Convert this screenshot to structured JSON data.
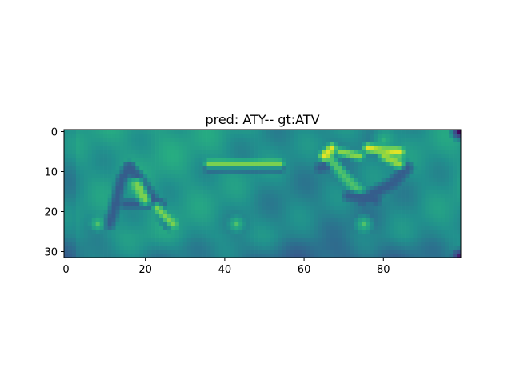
{
  "chart_data": {
    "type": "heatmap",
    "title": "pred: ATY-- gt:ATV",
    "image_shape": [
      32,
      100
    ],
    "colormap": "viridis",
    "xlim": [
      -0.5,
      99.5
    ],
    "ylim": [
      31.5,
      -0.5
    ],
    "x_ticks": [
      0,
      20,
      40,
      60,
      80
    ],
    "y_ticks": [
      0,
      10,
      20,
      30
    ],
    "x_tick_labels": [
      "0",
      "20",
      "40",
      "60",
      "80"
    ],
    "y_tick_labels": [
      "0",
      "10",
      "20",
      "30"
    ],
    "background_level": 0.52,
    "strokes": [
      {
        "id": "A-left-diag",
        "level": 0.3,
        "width": 1.2,
        "points": [
          [
            16,
            9
          ],
          [
            14,
            12
          ],
          [
            13,
            16
          ],
          [
            12,
            20
          ],
          [
            11,
            23
          ]
        ]
      },
      {
        "id": "A-right-diag",
        "level": 0.3,
        "width": 1.3,
        "points": [
          [
            16,
            9
          ],
          [
            18,
            11
          ],
          [
            20,
            14
          ],
          [
            22,
            17
          ],
          [
            24,
            20
          ],
          [
            26,
            23
          ]
        ]
      },
      {
        "id": "A-crossbar",
        "level": 0.3,
        "width": 1.0,
        "points": [
          [
            15,
            18
          ],
          [
            24,
            18
          ]
        ]
      },
      {
        "id": "A-inner-highlight",
        "level": 0.8,
        "width": 1.2,
        "points": [
          [
            18,
            13
          ],
          [
            20,
            17
          ]
        ]
      },
      {
        "id": "A-right-highlight",
        "level": 0.8,
        "width": 1.0,
        "points": [
          [
            23,
            19
          ],
          [
            27,
            23
          ]
        ]
      },
      {
        "id": "dash",
        "level": 0.3,
        "width": 1.0,
        "points": [
          [
            36,
            9
          ],
          [
            54,
            9
          ]
        ]
      },
      {
        "id": "dash-highlight",
        "level": 0.8,
        "width": 0.8,
        "points": [
          [
            36,
            8
          ],
          [
            54,
            8
          ]
        ]
      },
      {
        "id": "V-left-top",
        "level": 0.3,
        "width": 1.1,
        "points": [
          [
            64,
            9
          ],
          [
            67,
            8
          ]
        ]
      },
      {
        "id": "V-left-diag",
        "level": 0.72,
        "width": 1.1,
        "points": [
          [
            66,
            6
          ],
          [
            70,
            11
          ],
          [
            74,
            15
          ],
          [
            76,
            17
          ]
        ]
      },
      {
        "id": "V-right-diag",
        "level": 0.3,
        "width": 1.3,
        "points": [
          [
            86,
            9
          ],
          [
            82,
            13
          ],
          [
            78,
            15
          ],
          [
            75,
            17
          ]
        ]
      },
      {
        "id": "V-bottom",
        "level": 0.3,
        "width": 1.1,
        "points": [
          [
            71,
            16
          ],
          [
            78,
            17
          ]
        ]
      },
      {
        "id": "V-top-highlight-1",
        "level": 0.96,
        "width": 0.9,
        "points": [
          [
            65,
            6
          ],
          [
            67,
            4
          ]
        ]
      },
      {
        "id": "V-top-highlight-2",
        "level": 0.96,
        "width": 0.9,
        "points": [
          [
            76,
            4
          ],
          [
            84,
            5
          ]
        ]
      },
      {
        "id": "V-top-highlight-3",
        "level": 0.85,
        "width": 0.9,
        "points": [
          [
            80,
            6
          ],
          [
            84,
            8
          ]
        ]
      },
      {
        "id": "V-top-highlight-4",
        "level": 0.82,
        "width": 0.8,
        "points": [
          [
            69,
            5
          ],
          [
            74,
            6
          ]
        ]
      }
    ],
    "blobs": [
      {
        "id": "blob-left",
        "level": 0.72,
        "cx": 8,
        "cy": 23,
        "r": 1.6
      },
      {
        "id": "blob-mid",
        "level": 0.72,
        "cx": 43,
        "cy": 23,
        "r": 1.8
      },
      {
        "id": "blob-right",
        "level": 0.72,
        "cx": 75,
        "cy": 23,
        "r": 2.0
      },
      {
        "id": "blob-top-right",
        "level": 0.65,
        "cx": 80,
        "cy": 2,
        "r": 3.0
      },
      {
        "id": "corner-top-right",
        "level": 0.02,
        "cx": 99,
        "cy": 0,
        "r": 1.8
      },
      {
        "id": "corner-bottom-right",
        "level": 0.1,
        "cx": 99,
        "cy": 31,
        "r": 1.6
      }
    ]
  }
}
